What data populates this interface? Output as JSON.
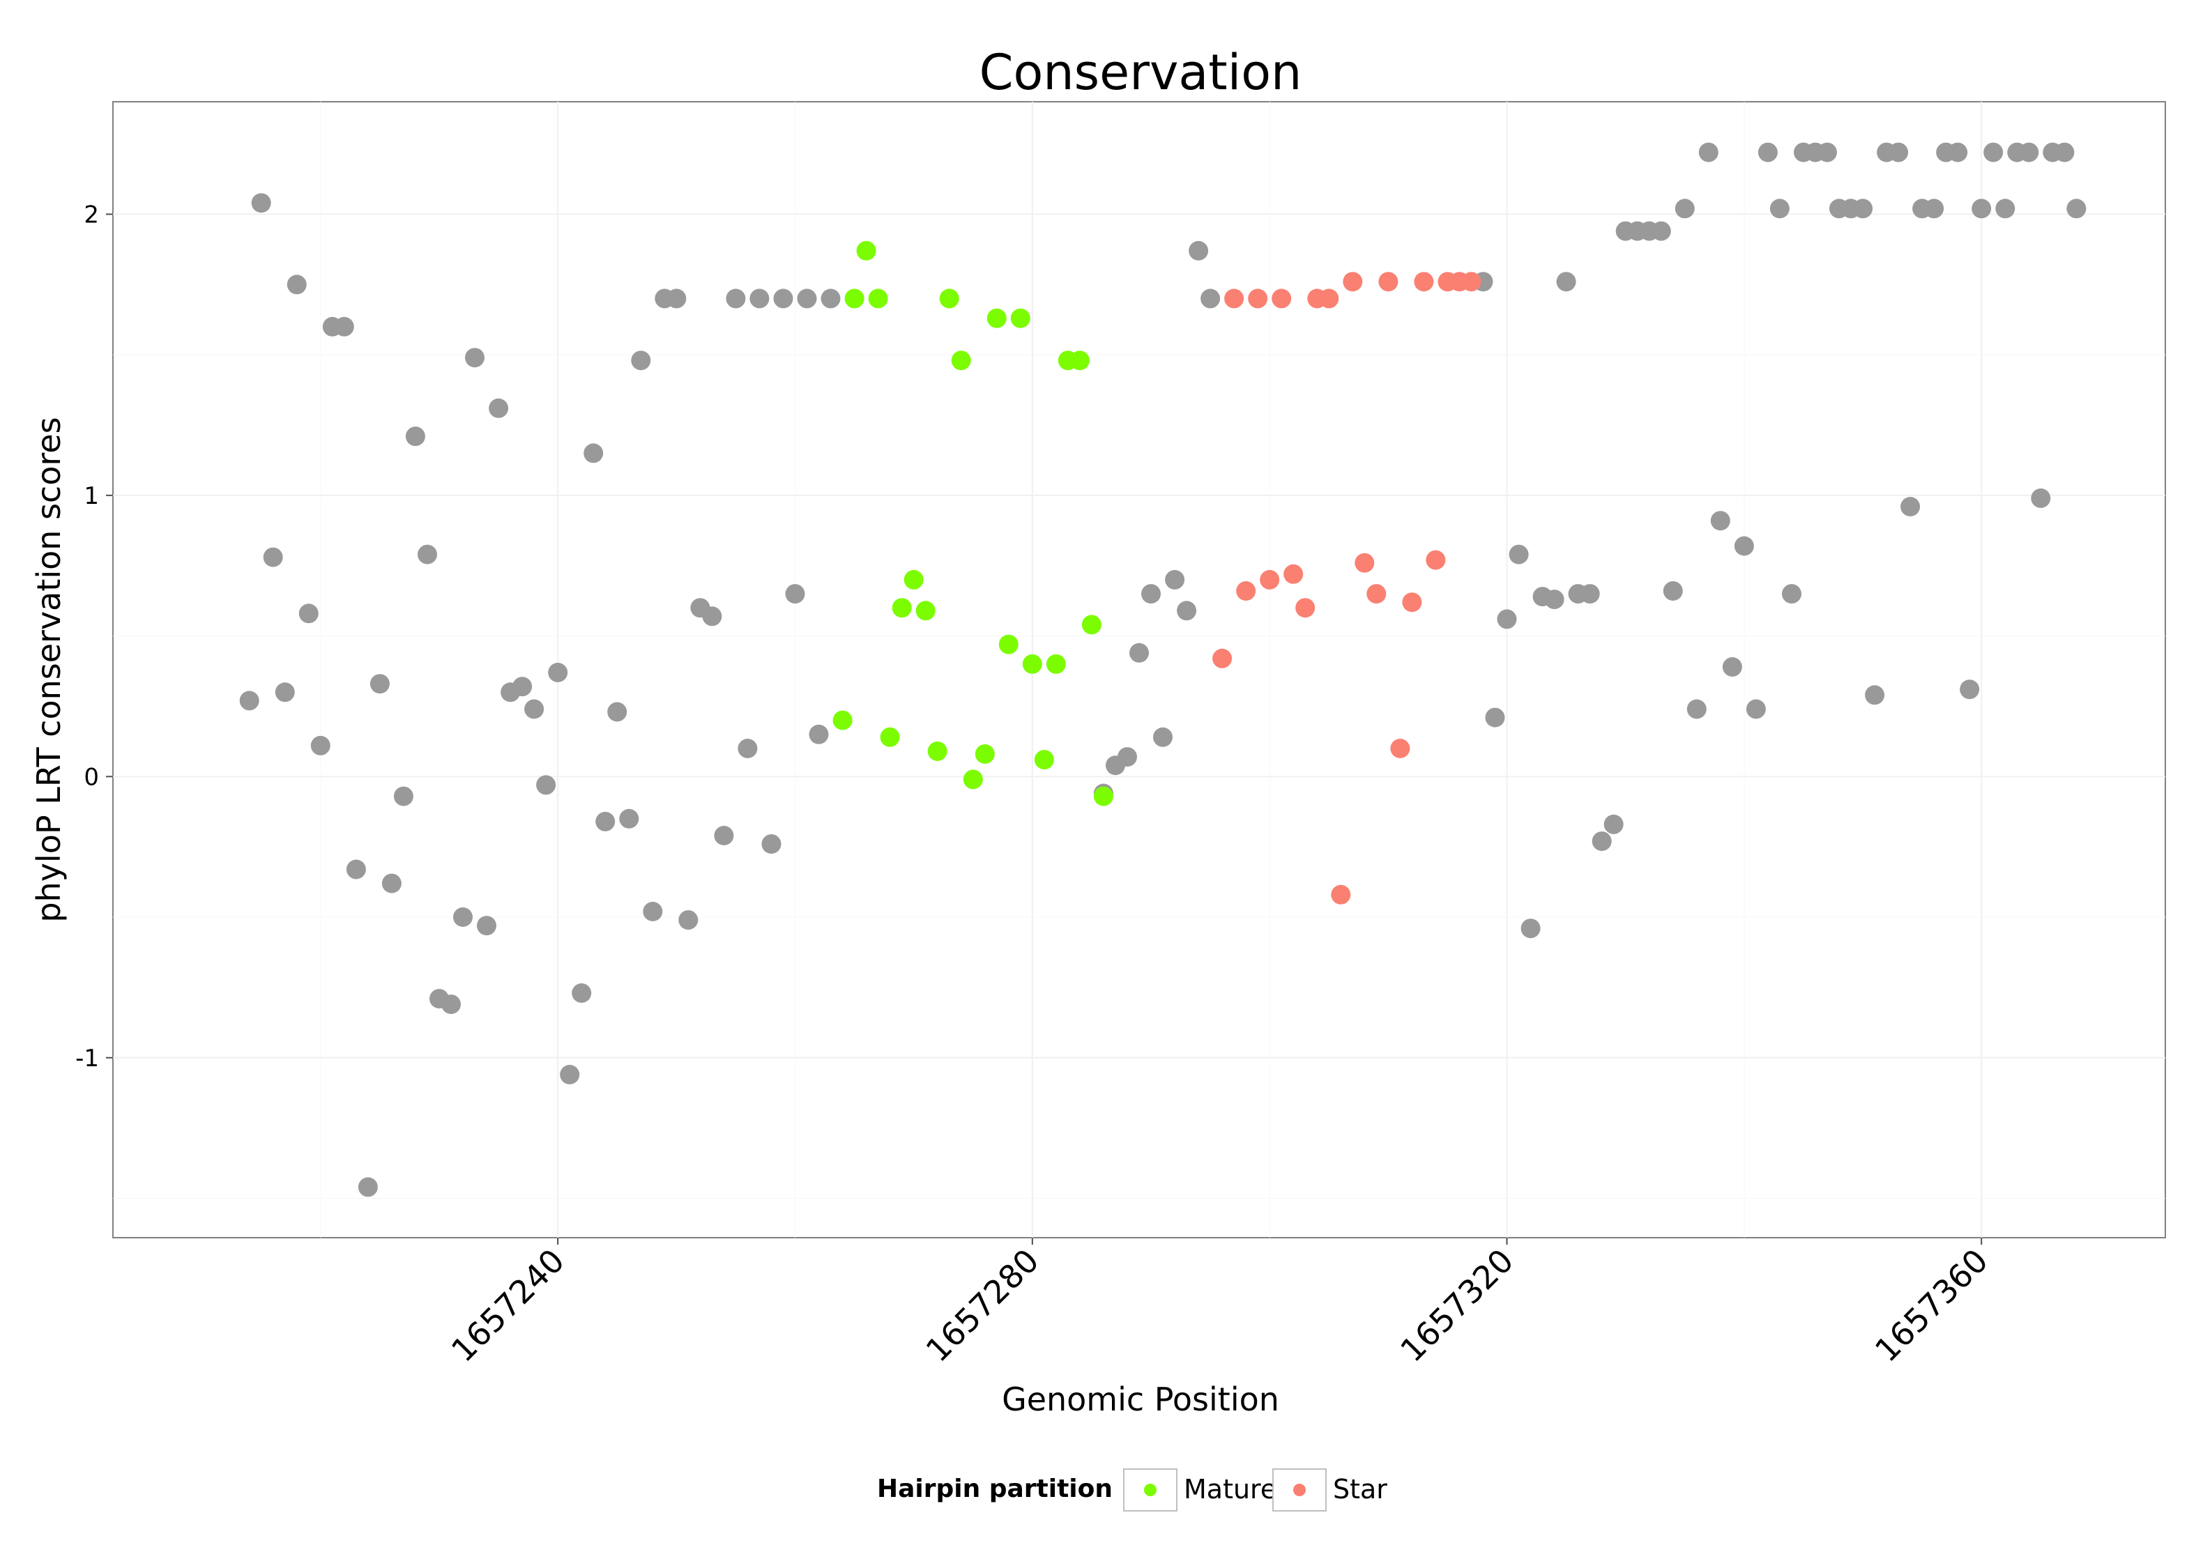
{
  "chart_data": {
    "type": "scatter",
    "title": "Conservation",
    "xlabel": "Genomic Position",
    "ylabel": "phyloP LRT conservation scores",
    "xlim": [
      1657202.5,
      1657375.5
    ],
    "ylim": [
      -1.64,
      2.4
    ],
    "x_ticks": [
      1657240,
      1657280,
      1657320,
      1657360
    ],
    "y_ticks": [
      -1,
      0,
      1,
      2
    ],
    "grid": true,
    "legend": {
      "title": "Hairpin partition",
      "position": "bottom",
      "entries": [
        {
          "label": "Mature",
          "color": "#7cfc00"
        },
        {
          "label": "Star",
          "color": "#fa8072"
        }
      ]
    },
    "colors": {
      "other": "#999999",
      "Mature": "#7cfc00",
      "Star": "#fa8072"
    },
    "series": [
      {
        "name": "Other",
        "points": [
          [
            1657214,
            0.27
          ],
          [
            1657215,
            2.04
          ],
          [
            1657216,
            0.78
          ],
          [
            1657217,
            0.3
          ],
          [
            1657218,
            1.75
          ],
          [
            1657219,
            0.58
          ],
          [
            1657220,
            0.11
          ],
          [
            1657221,
            1.6
          ],
          [
            1657222,
            1.6
          ],
          [
            1657223,
            -0.33
          ],
          [
            1657224,
            -1.46
          ],
          [
            1657225,
            0.33
          ],
          [
            1657226,
            -0.38
          ],
          [
            1657227,
            -0.07
          ],
          [
            1657228,
            1.21
          ],
          [
            1657229,
            0.79
          ],
          [
            1657230,
            -0.79
          ],
          [
            1657231,
            -0.81
          ],
          [
            1657232,
            -0.5
          ],
          [
            1657233,
            1.49
          ],
          [
            1657234,
            -0.53
          ],
          [
            1657235,
            1.31
          ],
          [
            1657236,
            0.3
          ],
          [
            1657237,
            0.32
          ],
          [
            1657238,
            0.24
          ],
          [
            1657239,
            -0.03
          ],
          [
            1657240,
            0.37
          ],
          [
            1657241,
            -1.06
          ],
          [
            1657242,
            -0.77
          ],
          [
            1657243,
            1.15
          ],
          [
            1657244,
            -0.16
          ],
          [
            1657245,
            0.23
          ],
          [
            1657246,
            -0.15
          ],
          [
            1657247,
            1.48
          ],
          [
            1657248,
            -0.48
          ],
          [
            1657249,
            1.7
          ],
          [
            1657250,
            1.7
          ],
          [
            1657251,
            -0.51
          ],
          [
            1657252,
            0.6
          ],
          [
            1657253,
            0.57
          ],
          [
            1657254,
            -0.21
          ],
          [
            1657255,
            1.7
          ],
          [
            1657256,
            0.1
          ],
          [
            1657257,
            1.7
          ],
          [
            1657258,
            -0.24
          ],
          [
            1657259,
            1.7
          ],
          [
            1657260,
            0.65
          ],
          [
            1657261,
            1.7
          ],
          [
            1657262,
            0.15
          ],
          [
            1657263,
            1.7
          ],
          [
            1657286,
            -0.06
          ],
          [
            1657287,
            0.04
          ],
          [
            1657288,
            0.07
          ],
          [
            1657289,
            0.44
          ],
          [
            1657290,
            0.65
          ],
          [
            1657291,
            0.14
          ],
          [
            1657292,
            0.7
          ],
          [
            1657293,
            0.59
          ],
          [
            1657294,
            1.87
          ],
          [
            1657295,
            1.7
          ],
          [
            1657318,
            1.76
          ],
          [
            1657319,
            0.21
          ],
          [
            1657320,
            0.56
          ],
          [
            1657321,
            0.79
          ],
          [
            1657322,
            -0.54
          ],
          [
            1657323,
            0.64
          ],
          [
            1657324,
            0.63
          ],
          [
            1657325,
            1.76
          ],
          [
            1657326,
            0.65
          ],
          [
            1657327,
            0.65
          ],
          [
            1657328,
            -0.23
          ],
          [
            1657329,
            -0.17
          ],
          [
            1657330,
            1.94
          ],
          [
            1657331,
            1.94
          ],
          [
            1657332,
            1.94
          ],
          [
            1657333,
            1.94
          ],
          [
            1657334,
            0.66
          ],
          [
            1657335,
            2.02
          ],
          [
            1657336,
            0.24
          ],
          [
            1657337,
            2.22
          ],
          [
            1657338,
            0.91
          ],
          [
            1657339,
            0.39
          ],
          [
            1657340,
            0.82
          ],
          [
            1657341,
            0.24
          ],
          [
            1657342,
            2.22
          ],
          [
            1657343,
            2.02
          ],
          [
            1657344,
            0.65
          ],
          [
            1657345,
            2.22
          ],
          [
            1657346,
            2.22
          ],
          [
            1657347,
            2.22
          ],
          [
            1657348,
            2.02
          ],
          [
            1657349,
            2.02
          ],
          [
            1657350,
            2.02
          ],
          [
            1657351,
            0.29
          ],
          [
            1657352,
            2.22
          ],
          [
            1657353,
            2.22
          ],
          [
            1657354,
            0.96
          ],
          [
            1657355,
            2.02
          ],
          [
            1657356,
            2.02
          ],
          [
            1657357,
            2.22
          ],
          [
            1657358,
            2.22
          ],
          [
            1657359,
            0.31
          ],
          [
            1657360,
            2.02
          ],
          [
            1657361,
            2.22
          ],
          [
            1657362,
            2.02
          ],
          [
            1657363,
            2.22
          ],
          [
            1657364,
            2.22
          ],
          [
            1657365,
            0.99
          ],
          [
            1657366,
            2.22
          ],
          [
            1657367,
            2.22
          ],
          [
            1657368,
            2.02
          ]
        ]
      },
      {
        "name": "Mature",
        "points": [
          [
            1657264,
            0.2
          ],
          [
            1657265,
            1.7
          ],
          [
            1657266,
            1.87
          ],
          [
            1657267,
            1.7
          ],
          [
            1657268,
            0.14
          ],
          [
            1657269,
            0.6
          ],
          [
            1657270,
            0.7
          ],
          [
            1657271,
            0.59
          ],
          [
            1657272,
            0.09
          ],
          [
            1657273,
            1.7
          ],
          [
            1657274,
            1.48
          ],
          [
            1657275,
            -0.01
          ],
          [
            1657276,
            0.08
          ],
          [
            1657277,
            1.63
          ],
          [
            1657278,
            0.47
          ],
          [
            1657279,
            1.63
          ],
          [
            1657280,
            0.4
          ],
          [
            1657281,
            0.06
          ],
          [
            1657282,
            0.4
          ],
          [
            1657283,
            1.48
          ],
          [
            1657284,
            1.48
          ],
          [
            1657285,
            0.54
          ],
          [
            1657286,
            -0.07
          ]
        ]
      },
      {
        "name": "Star",
        "points": [
          [
            1657296,
            0.42
          ],
          [
            1657297,
            1.7
          ],
          [
            1657298,
            0.66
          ],
          [
            1657299,
            1.7
          ],
          [
            1657300,
            0.7
          ],
          [
            1657301,
            1.7
          ],
          [
            1657302,
            0.72
          ],
          [
            1657303,
            0.6
          ],
          [
            1657304,
            1.7
          ],
          [
            1657305,
            1.7
          ],
          [
            1657306,
            -0.42
          ],
          [
            1657307,
            1.76
          ],
          [
            1657308,
            0.76
          ],
          [
            1657309,
            0.65
          ],
          [
            1657310,
            1.76
          ],
          [
            1657311,
            0.1
          ],
          [
            1657312,
            0.62
          ],
          [
            1657313,
            1.76
          ],
          [
            1657314,
            0.77
          ],
          [
            1657315,
            1.76
          ],
          [
            1657316,
            1.76
          ],
          [
            1657317,
            1.76
          ]
        ]
      }
    ]
  }
}
